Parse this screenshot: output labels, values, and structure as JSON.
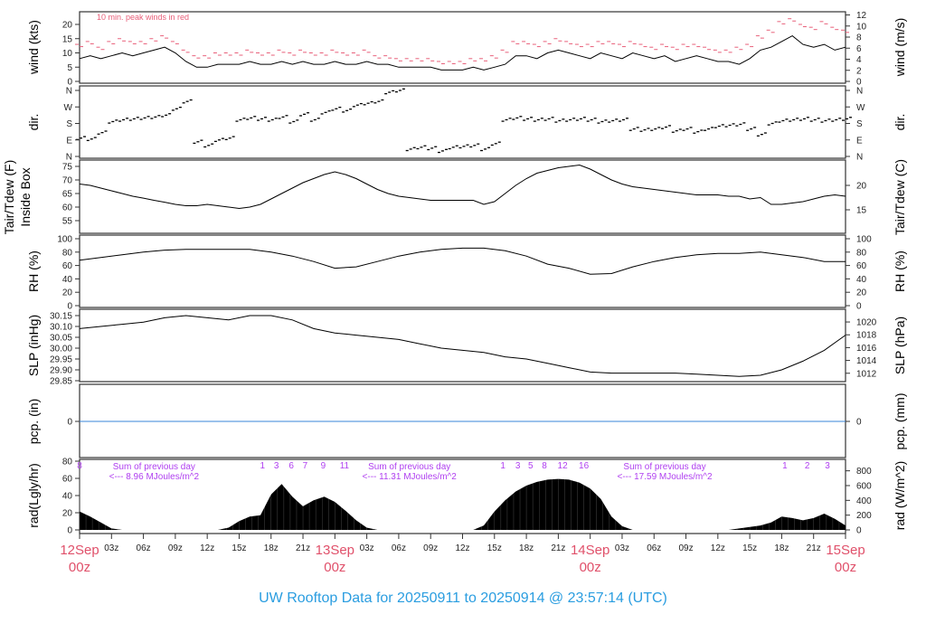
{
  "chart_data": {
    "type": "line",
    "title": "UW Rooftop Data for 20250911  to  20250914 @ 23:57:14  (UTC)",
    "x_range_hours": [
      0,
      72
    ],
    "x_ticks": [
      "03z",
      "06z",
      "09z",
      "12z",
      "15z",
      "18z",
      "21z",
      "",
      "03z",
      "06z",
      "09z",
      "12z",
      "15z",
      "18z",
      "21z",
      "",
      "03z",
      "06z",
      "09z",
      "12z",
      "15z",
      "18z",
      "21z"
    ],
    "day_labels": [
      {
        "hour": 0,
        "day": "12Sep",
        "time": "00z"
      },
      {
        "hour": 24,
        "day": "13Sep",
        "time": "00z"
      },
      {
        "hour": 48,
        "day": "14Sep",
        "time": "00z"
      },
      {
        "hour": 72,
        "day": "15Sep",
        "time": "00z"
      }
    ],
    "colors": {
      "peak": "#e8607a",
      "pcp": "#3a86d8",
      "uv": "#b040f0",
      "title": "#2a9de0",
      "day": "#e0506a"
    },
    "wind": {
      "ylabel_left": "wind (kts)",
      "ylabel_right": "wind (m/s)",
      "note": "10 min. peak winds in red",
      "left_ticks": [
        "0",
        "5",
        "10",
        "15",
        "20"
      ],
      "right_ticks": [
        "0",
        "2",
        "4",
        "6",
        "8",
        "10",
        "12"
      ],
      "mean_kts": [
        8,
        9,
        8,
        9,
        10,
        9,
        10,
        11,
        12,
        10,
        7,
        5,
        5,
        6,
        6,
        6,
        7,
        6,
        6,
        7,
        6,
        7,
        6,
        6,
        7,
        6,
        6,
        7,
        6,
        6,
        5,
        5,
        5,
        5,
        4,
        4,
        4,
        5,
        4,
        5,
        6,
        9,
        9,
        8,
        10,
        11,
        10,
        9,
        8,
        10,
        9,
        8,
        10,
        9,
        8,
        9,
        7,
        8,
        9,
        8,
        7,
        7,
        6,
        8,
        11,
        12,
        14,
        16,
        13,
        12,
        13,
        11,
        12
      ],
      "peak_kts": [
        13,
        14,
        12,
        14,
        15,
        14,
        14,
        15,
        16,
        14,
        11,
        9,
        9,
        10,
        10,
        10,
        11,
        10,
        10,
        11,
        10,
        11,
        10,
        10,
        11,
        10,
        10,
        11,
        9,
        9,
        8,
        8,
        8,
        8,
        7,
        7,
        7,
        8,
        8,
        9,
        11,
        14,
        14,
        13,
        14,
        15,
        14,
        13,
        13,
        14,
        14,
        13,
        14,
        13,
        12,
        13,
        12,
        13,
        13,
        12,
        11,
        11,
        12,
        13,
        16,
        18,
        21,
        22,
        20,
        19,
        21,
        19,
        18
      ]
    },
    "dir": {
      "ylabel_left": "dir.",
      "ylabel_right": "dir.",
      "ticks": [
        "N",
        "E",
        "S",
        "W",
        "N"
      ],
      "degrees": [
        100,
        95,
        130,
        190,
        200,
        205,
        210,
        215,
        225,
        260,
        300,
        80,
        60,
        90,
        100,
        200,
        210,
        205,
        200,
        215,
        190,
        230,
        200,
        240,
        260,
        250,
        280,
        290,
        300,
        350,
        360,
        40,
        50,
        45,
        30,
        50,
        55,
        60,
        40,
        70,
        200,
        210,
        205,
        200,
        205,
        195,
        200,
        205,
        200,
        190,
        195,
        200,
        150,
        145,
        150,
        160,
        140,
        150,
        135,
        150,
        165,
        170,
        175,
        150,
        120,
        180,
        195,
        200,
        205,
        200,
        195,
        200,
        205
      ]
    },
    "temp": {
      "ylabel_left": "Tair/Tdew (F)",
      "ylabel_left2": "Inside Box",
      "ylabel_right": "Tair/Tdew (C)",
      "left_ticks": [
        "55",
        "60",
        "65",
        "70",
        "75"
      ],
      "right_ticks": [
        "15",
        "20"
      ],
      "tair_f": [
        68.5,
        68,
        67,
        66,
        65,
        64,
        63.3,
        62.5,
        61.8,
        61,
        60.5,
        60.5,
        61,
        60.5,
        60,
        59.5,
        60,
        61,
        63,
        65,
        67,
        69,
        70.5,
        72,
        73,
        72,
        70.5,
        68.5,
        66.5,
        65,
        64,
        63.5,
        63,
        62.5,
        62.5,
        62.5,
        62.5,
        62.5,
        61,
        62,
        65,
        68,
        70.5,
        72.5,
        73.5,
        74.5,
        75,
        75.5,
        74,
        72,
        70,
        68.5,
        67.5,
        67,
        66.5,
        66,
        65.5,
        65,
        64.5,
        64.5,
        64.5,
        64,
        64,
        63,
        63.5,
        61,
        61,
        61.5,
        62,
        63,
        64,
        64.5,
        64
      ]
    },
    "rh": {
      "ylabel_left": "RH (%)",
      "ylabel_right": "RH (%)",
      "ticks": [
        "0",
        "20",
        "40",
        "60",
        "80",
        "100"
      ],
      "values": [
        68,
        72,
        76,
        80,
        83,
        84,
        84,
        84,
        84,
        80,
        74,
        66,
        56,
        58,
        66,
        74,
        80,
        84,
        86,
        86,
        82,
        74,
        62,
        56,
        47,
        48,
        58,
        66,
        72,
        76,
        78,
        78,
        80,
        76,
        72,
        66,
        66
      ]
    },
    "slp": {
      "ylabel_left": "SLP (inHg)",
      "ylabel_right": "SLP (hPa)",
      "left_ticks": [
        "29.85",
        "29.90",
        "29.95",
        "30.00",
        "30.05",
        "30.10",
        "30.15"
      ],
      "right_ticks": [
        "1012",
        "1014",
        "1016",
        "1018",
        "1020"
      ],
      "inhg": [
        30.09,
        30.1,
        30.11,
        30.12,
        30.14,
        30.15,
        30.14,
        30.13,
        30.15,
        30.15,
        30.13,
        30.09,
        30.07,
        30.06,
        30.05,
        30.04,
        30.02,
        30.0,
        29.99,
        29.98,
        29.96,
        29.95,
        29.93,
        29.91,
        29.89,
        29.885,
        29.885,
        29.885,
        29.885,
        29.88,
        29.875,
        29.87,
        29.875,
        29.9,
        29.94,
        29.99,
        30.06
      ]
    },
    "pcp": {
      "ylabel_left": "pcp. (in)",
      "ylabel_right": "pcp. (mm)",
      "left_ticks": [
        "0"
      ],
      "right_ticks": [
        "0"
      ],
      "value": 0
    },
    "rad": {
      "ylabel_left": "rad(Lgly/hr)",
      "ylabel_right": "rad (W/m^2)",
      "left_ticks": [
        "0",
        "20",
        "40",
        "60",
        "80"
      ],
      "right_ticks": [
        "0",
        "200",
        "400",
        "600",
        "800"
      ],
      "wm2": [
        250,
        180,
        100,
        20,
        0,
        0,
        0,
        0,
        0,
        0,
        0,
        0,
        0,
        0,
        30,
        120,
        180,
        200,
        480,
        620,
        450,
        320,
        400,
        450,
        380,
        260,
        130,
        30,
        0,
        0,
        0,
        0,
        0,
        0,
        0,
        0,
        0,
        0,
        60,
        250,
        400,
        520,
        600,
        650,
        680,
        690,
        680,
        640,
        560,
        420,
        180,
        50,
        0,
        0,
        0,
        0,
        0,
        0,
        0,
        0,
        0,
        0,
        20,
        40,
        60,
        100,
        180,
        160,
        130,
        160,
        220,
        150,
        60
      ],
      "daily_sums": [
        {
          "hour": 7,
          "line1": "Sum of previous day",
          "line2": "<--- 8.96 MJoules/m^2"
        },
        {
          "hour": 31,
          "line1": "Sum of previous day",
          "line2": "<--- 11.31 MJoules/m^2"
        },
        {
          "hour": 55,
          "line1": "Sum of previous day",
          "line2": "<--- 17.59 MJoules/m^2"
        }
      ],
      "uv_index": [
        {
          "hour": 0,
          "label": "8"
        },
        {
          "hour": 17.2,
          "label": "1"
        },
        {
          "hour": 18.5,
          "label": "3"
        },
        {
          "hour": 19.9,
          "label": "6"
        },
        {
          "hour": 21.2,
          "label": "7"
        },
        {
          "hour": 22.9,
          "label": "9"
        },
        {
          "hour": 24.9,
          "label": "11"
        },
        {
          "hour": 39.8,
          "label": "1"
        },
        {
          "hour": 41.2,
          "label": "3"
        },
        {
          "hour": 42.4,
          "label": "5"
        },
        {
          "hour": 43.7,
          "label": "8"
        },
        {
          "hour": 45.4,
          "label": "12"
        },
        {
          "hour": 47.4,
          "label": "16"
        },
        {
          "hour": 66.3,
          "label": "1"
        },
        {
          "hour": 68.4,
          "label": "2"
        },
        {
          "hour": 70.3,
          "label": "3"
        }
      ]
    }
  }
}
